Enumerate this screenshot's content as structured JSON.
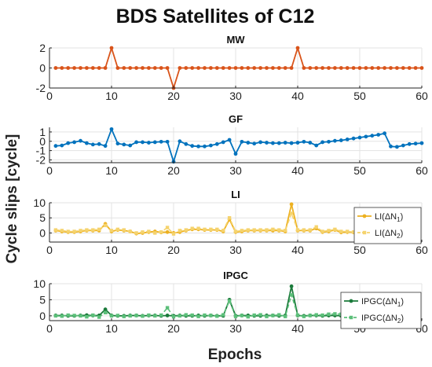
{
  "figure": {
    "title": "BDS Satellites of C12",
    "xlabel": "Epochs",
    "ylabel": "Cycle slips [cycle]"
  },
  "chart_data": [
    {
      "type": "line",
      "title": "MW",
      "xlim": [
        0,
        60
      ],
      "ylim": [
        -2,
        2
      ],
      "xticks": [
        0,
        10,
        20,
        30,
        40,
        50,
        60
      ],
      "yticks": [
        -2,
        0,
        2
      ],
      "grid": true,
      "series": [
        {
          "color": "#d95319",
          "marker": "circle",
          "x": [
            1,
            2,
            3,
            4,
            5,
            6,
            7,
            8,
            9,
            10,
            11,
            12,
            13,
            14,
            15,
            16,
            17,
            18,
            19,
            20,
            21,
            22,
            23,
            24,
            25,
            26,
            27,
            28,
            29,
            30,
            31,
            32,
            33,
            34,
            35,
            36,
            37,
            38,
            39,
            40,
            41,
            42,
            43,
            44,
            45,
            46,
            47,
            48,
            49,
            50,
            51,
            52,
            53,
            54,
            55,
            56,
            57,
            58,
            59,
            60
          ],
          "y": [
            0,
            0,
            0,
            0,
            0,
            0,
            0,
            0,
            0,
            2,
            0,
            0,
            0,
            0,
            0,
            0,
            0,
            0,
            0,
            -2,
            0,
            0,
            0,
            0,
            0,
            0,
            0,
            0,
            0,
            0,
            0,
            0,
            0,
            0,
            0,
            0,
            0,
            0,
            0,
            2,
            0,
            0,
            0,
            0,
            0,
            0,
            0,
            0,
            0,
            0,
            0,
            0,
            0,
            0,
            0,
            0,
            0,
            0,
            0,
            0
          ]
        }
      ]
    },
    {
      "type": "line",
      "title": "GF",
      "xlim": [
        0,
        60
      ],
      "ylim": [
        -2.3,
        1.5
      ],
      "xticks": [
        0,
        10,
        20,
        30,
        40,
        50,
        60
      ],
      "yticks": [
        -2,
        -1,
        0,
        1
      ],
      "grid": true,
      "series": [
        {
          "color": "#0072bd",
          "marker": "circle",
          "x": [
            1,
            2,
            3,
            4,
            5,
            6,
            7,
            8,
            9,
            10,
            11,
            12,
            13,
            14,
            15,
            16,
            17,
            18,
            19,
            20,
            21,
            22,
            23,
            24,
            25,
            26,
            27,
            28,
            29,
            30,
            31,
            32,
            33,
            34,
            35,
            36,
            37,
            38,
            39,
            40,
            41,
            42,
            43,
            44,
            45,
            46,
            47,
            48,
            49,
            50,
            51,
            52,
            53,
            54,
            55,
            56,
            57,
            58,
            59,
            60
          ],
          "y": [
            -0.5,
            -0.45,
            -0.2,
            -0.1,
            0.05,
            -0.2,
            -0.35,
            -0.3,
            -0.5,
            1.3,
            -0.25,
            -0.35,
            -0.45,
            -0.1,
            -0.1,
            -0.15,
            -0.1,
            -0.05,
            -0.05,
            -2.2,
            0.0,
            -0.3,
            -0.5,
            -0.55,
            -0.55,
            -0.45,
            -0.3,
            -0.1,
            0.15,
            -1.35,
            -0.05,
            -0.15,
            -0.25,
            -0.1,
            -0.15,
            -0.2,
            -0.2,
            -0.15,
            -0.2,
            -0.15,
            -0.05,
            -0.15,
            -0.45,
            -0.1,
            -0.05,
            0.05,
            0.1,
            0.2,
            0.3,
            0.4,
            0.5,
            0.6,
            0.7,
            0.85,
            -0.55,
            -0.6,
            -0.45,
            -0.3,
            -0.25,
            -0.2
          ]
        }
      ]
    },
    {
      "type": "line",
      "title": "LI",
      "xlim": [
        0,
        60
      ],
      "ylim": [
        -3,
        10
      ],
      "xticks": [
        0,
        10,
        20,
        30,
        40,
        50,
        60
      ],
      "yticks": [
        0,
        5,
        10
      ],
      "grid": true,
      "legend": {
        "placement": "top-right",
        "entries": [
          "LI(ΔN1)",
          "LI(ΔN2)"
        ]
      },
      "series": [
        {
          "name": "LI(ΔN1)",
          "color": "#edb120",
          "style": "solid",
          "marker": "circle",
          "x": [
            1,
            2,
            3,
            4,
            5,
            6,
            7,
            8,
            9,
            10,
            11,
            12,
            13,
            14,
            15,
            16,
            17,
            18,
            19,
            20,
            21,
            22,
            23,
            24,
            25,
            26,
            27,
            28,
            29,
            30,
            31,
            32,
            33,
            34,
            35,
            36,
            37,
            38,
            39,
            40,
            41,
            42,
            43,
            44,
            45,
            46,
            47,
            48,
            49,
            50,
            51,
            52,
            53,
            54,
            55,
            56,
            57,
            58,
            59
          ],
          "y": [
            0.8,
            0.5,
            0.3,
            0.3,
            0.5,
            0.8,
            0.8,
            0.8,
            3.0,
            0.5,
            1.0,
            0.8,
            0.5,
            -0.2,
            0.0,
            0.3,
            0.5,
            0.2,
            0.3,
            0.0,
            0.3,
            0.8,
            1.2,
            1.2,
            1.0,
            1.0,
            1.0,
            0.5,
            4.5,
            0.3,
            0.5,
            0.8,
            0.8,
            0.8,
            0.8,
            0.8,
            0.8,
            0.5,
            9.5,
            0.8,
            0.8,
            0.8,
            1.5,
            0.3,
            0.5,
            1.0,
            0.2,
            0.3,
            0.2,
            -0.8,
            -1.2,
            -1.0,
            -1.5,
            1.0,
            1.5,
            1.5,
            1.0,
            0.8,
            1.0
          ]
        },
        {
          "name": "LI(ΔN2)",
          "color": "#f5d36e",
          "style": "dashed",
          "marker": "square",
          "x": [
            1,
            2,
            3,
            4,
            5,
            6,
            7,
            8,
            9,
            10,
            11,
            12,
            13,
            14,
            15,
            16,
            17,
            18,
            19,
            20,
            21,
            22,
            23,
            24,
            25,
            26,
            27,
            28,
            29,
            30,
            31,
            32,
            33,
            34,
            35,
            36,
            37,
            38,
            39,
            40,
            41,
            42,
            43,
            44,
            45,
            46,
            47,
            48,
            49,
            50,
            51,
            52,
            53,
            54,
            55,
            56,
            57,
            58,
            59
          ],
          "y": [
            1.0,
            0.8,
            0.5,
            0.5,
            0.8,
            1.0,
            1.0,
            1.2,
            2.5,
            0.8,
            1.2,
            1.0,
            0.5,
            0.0,
            0.3,
            0.5,
            0.0,
            0.3,
            1.8,
            -0.3,
            0.8,
            1.0,
            1.5,
            1.5,
            1.2,
            1.2,
            1.2,
            0.8,
            5.0,
            0.5,
            0.8,
            1.0,
            1.0,
            1.0,
            1.0,
            1.2,
            1.0,
            0.8,
            6.5,
            1.0,
            1.0,
            1.0,
            2.0,
            0.5,
            0.8,
            1.2,
            0.5,
            0.5,
            0.3,
            -0.5,
            -1.0,
            -0.8,
            -1.2,
            1.3,
            1.8,
            1.8,
            1.3,
            1.0,
            1.2
          ]
        }
      ]
    },
    {
      "type": "line",
      "title": "IPGC",
      "xlim": [
        0,
        60
      ],
      "ylim": [
        -1.5,
        10
      ],
      "xticks": [
        0,
        10,
        20,
        30,
        40,
        50,
        60
      ],
      "yticks": [
        0,
        5,
        10
      ],
      "grid": true,
      "legend": {
        "placement": "top-right",
        "entries": [
          "IPGC(ΔN1)",
          "IPGC(ΔN2)"
        ]
      },
      "series": [
        {
          "name": "IPGC(ΔN1)",
          "color": "#1a7a3a",
          "style": "solid",
          "marker": "circle",
          "x": [
            1,
            2,
            3,
            4,
            5,
            6,
            7,
            8,
            9,
            10,
            11,
            12,
            13,
            14,
            15,
            16,
            17,
            18,
            19,
            20,
            21,
            22,
            23,
            24,
            25,
            26,
            27,
            28,
            29,
            30,
            31,
            32,
            33,
            34,
            35,
            36,
            37,
            38,
            39,
            40,
            41,
            42,
            43,
            44,
            45,
            46,
            47,
            48,
            49,
            50,
            51,
            52,
            53,
            54,
            55,
            56,
            57,
            58,
            59
          ],
          "y": [
            0.1,
            0.1,
            0.0,
            0.0,
            0.1,
            0.2,
            0.1,
            0.1,
            2.0,
            0.1,
            0.0,
            0.0,
            0.1,
            0.1,
            0.0,
            0.1,
            0.1,
            0.0,
            0.1,
            0.0,
            0.1,
            0.0,
            0.0,
            0.1,
            0.0,
            0.1,
            0.0,
            0.0,
            5.0,
            0.0,
            0.1,
            0.1,
            0.0,
            0.0,
            0.1,
            0.1,
            0.0,
            0.1,
            9.2,
            0.1,
            0.0,
            0.1,
            0.1,
            0.0,
            0.1,
            0.1,
            0.0,
            0.1,
            0.0,
            0.0,
            0.1,
            0.0,
            0.0,
            0.1,
            0.1,
            0.0,
            0.1,
            0.0,
            0.0
          ]
        },
        {
          "name": "IPGC(ΔN2)",
          "color": "#5cbf7a",
          "style": "dashed",
          "marker": "square",
          "x": [
            1,
            2,
            3,
            4,
            5,
            6,
            7,
            8,
            9,
            10,
            11,
            12,
            13,
            14,
            15,
            16,
            17,
            18,
            19,
            20,
            21,
            22,
            23,
            24,
            25,
            26,
            27,
            28,
            29,
            30,
            31,
            32,
            33,
            34,
            35,
            36,
            37,
            38,
            39,
            40,
            41,
            42,
            43,
            44,
            45,
            46,
            47,
            48,
            49,
            50,
            51,
            52,
            53,
            54,
            55,
            56,
            57,
            58,
            59
          ],
          "y": [
            0.0,
            -0.1,
            0.2,
            0.1,
            0.0,
            -0.3,
            0.2,
            -0.4,
            1.0,
            0.0,
            0.1,
            -0.2,
            0.0,
            0.1,
            -0.1,
            0.2,
            0.0,
            0.2,
            2.5,
            -0.3,
            0.0,
            0.3,
            0.2,
            -0.2,
            0.2,
            0.1,
            -0.1,
            0.3,
            4.6,
            -0.2,
            0.1,
            -0.3,
            0.2,
            0.3,
            -0.2,
            0.1,
            0.3,
            -0.2,
            6.5,
            0.2,
            -0.2,
            0.1,
            0.3,
            0.2,
            0.5,
            0.6,
            0.5,
            0.8,
            0.7,
            0.9,
            1.0,
            0.8,
            1.2,
            0.3,
            0.4,
            0.2,
            0.3,
            0.1,
            0.2
          ]
        }
      ]
    }
  ]
}
